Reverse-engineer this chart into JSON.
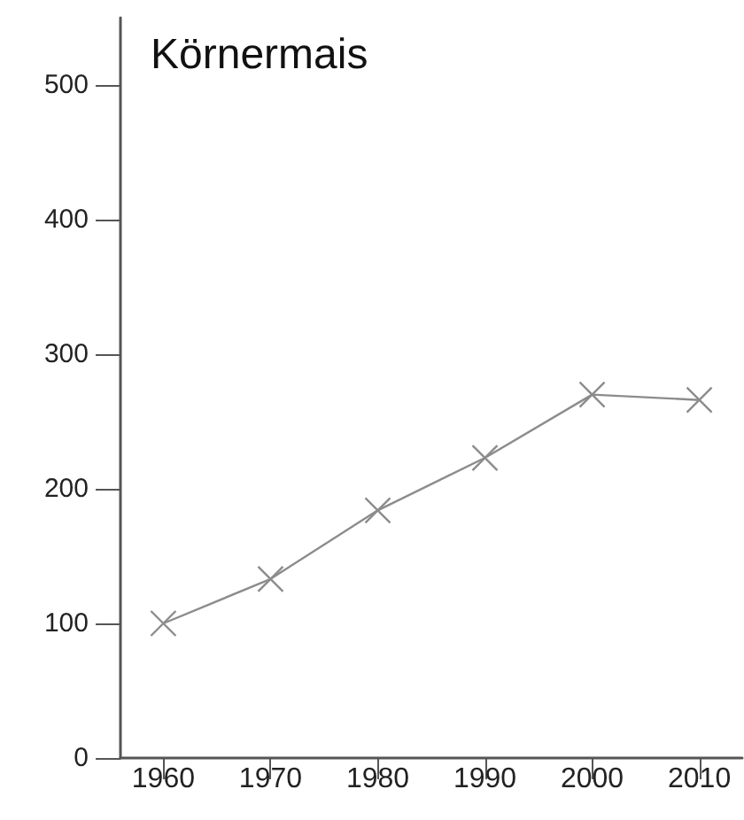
{
  "chart_data": {
    "type": "line",
    "title": "Körnermais",
    "x": [
      1960,
      1970,
      1980,
      1990,
      2000,
      2010
    ],
    "series": [
      {
        "color": "#8c8c8c",
        "values": [
          100,
          133,
          184,
          223,
          270,
          266
        ]
      }
    ],
    "xlim": [
      1956,
      2014
    ],
    "xticks": [
      1960,
      1970,
      1980,
      1990,
      2000,
      2010
    ],
    "ylim": [
      0,
      550
    ],
    "yticks": [
      0,
      100,
      200,
      300,
      400,
      500
    ],
    "grid": false,
    "marker": "cross",
    "line_style": "solid"
  }
}
